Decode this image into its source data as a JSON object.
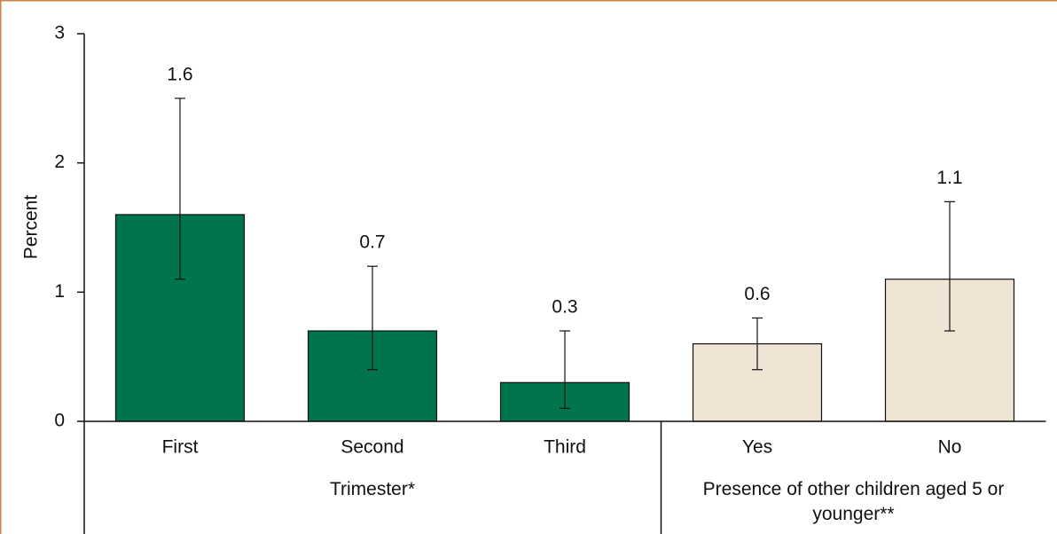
{
  "chart_data": {
    "type": "bar",
    "y_label": "Percent",
    "categories": [
      "First",
      "Second",
      "Third",
      "Yes",
      "No"
    ],
    "values": [
      1.6,
      0.7,
      0.3,
      0.6,
      1.1
    ],
    "lower": [
      1.1,
      0.4,
      0.1,
      0.4,
      0.7
    ],
    "upper": [
      2.5,
      1.2,
      0.7,
      0.8,
      1.7
    ],
    "colors": [
      "#00734f",
      "#00734f",
      "#00734f",
      "#f0e4d4",
      "#f0e4d4"
    ],
    "groups": [
      {
        "label": "Trimester*",
        "size": 3
      },
      {
        "label": "Presence of other children aged 5 or younger**",
        "size": 2
      }
    ],
    "ylim": [
      0,
      3
    ],
    "yticks": [
      0,
      1,
      2,
      3
    ]
  }
}
